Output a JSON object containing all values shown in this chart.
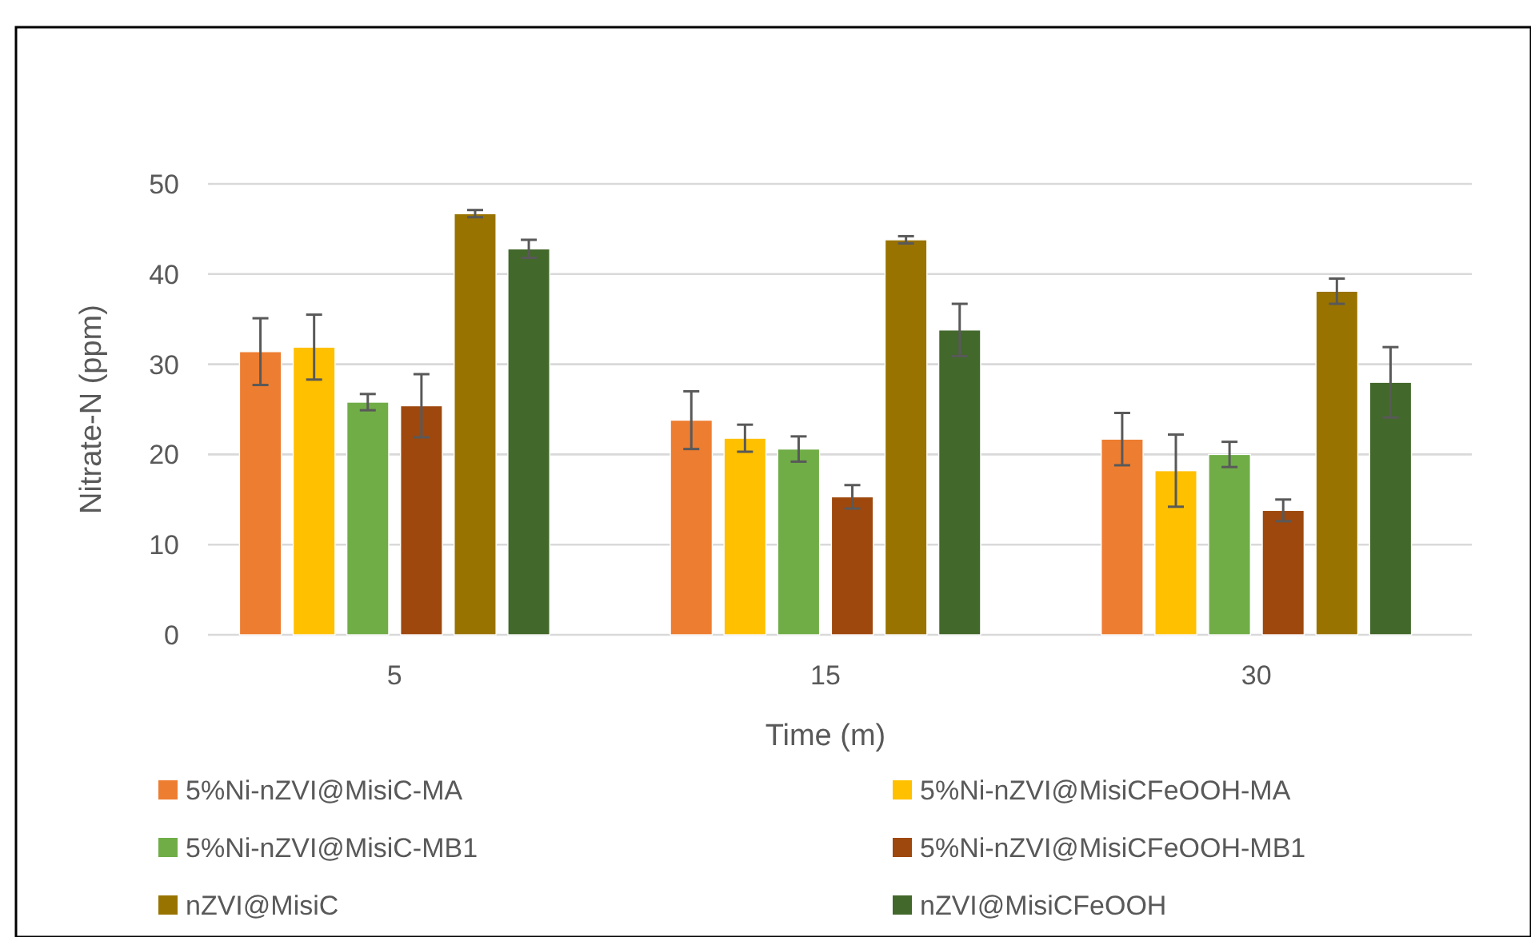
{
  "chart_data": {
    "type": "bar",
    "xlabel": "Time (m)",
    "ylabel": "Nitrate-N (ppm)",
    "categories": [
      "5",
      "15",
      "30"
    ],
    "series": [
      {
        "name": "5%Ni-nZVI@MisiC-MA",
        "color": "#ed7d31",
        "values": [
          31.4,
          23.8,
          21.7
        ],
        "errors": [
          3.7,
          3.2,
          2.9
        ]
      },
      {
        "name": "5%Ni-nZVI@MisiCFeOOH-MA",
        "color": "#ffc000",
        "values": [
          31.9,
          21.8,
          18.2
        ],
        "errors": [
          3.6,
          1.5,
          4.0
        ]
      },
      {
        "name": "5%Ni-nZVI@MisiC-MB1",
        "color": "#70ad47",
        "values": [
          25.8,
          20.6,
          20.0
        ],
        "errors": [
          0.9,
          1.4,
          1.4
        ]
      },
      {
        "name": "5%Ni-nZVI@MisiCFeOOH-MB1",
        "color": "#9e480e",
        "values": [
          25.4,
          15.3,
          13.8
        ],
        "errors": [
          3.5,
          1.3,
          1.2
        ]
      },
      {
        "name": "nZVI@MisiC",
        "color": "#997300",
        "values": [
          46.7,
          43.8,
          38.1
        ],
        "errors": [
          0.4,
          0.4,
          1.4
        ]
      },
      {
        "name": "nZVI@MisiCFeOOH",
        "color": "#43682b",
        "values": [
          42.8,
          33.8,
          28.0
        ],
        "errors": [
          1.0,
          2.9,
          3.9
        ]
      }
    ],
    "ylim": [
      0,
      50
    ],
    "yticks": [
      0,
      10,
      20,
      30,
      40,
      50
    ],
    "grid": "y",
    "legend": "bottom"
  }
}
